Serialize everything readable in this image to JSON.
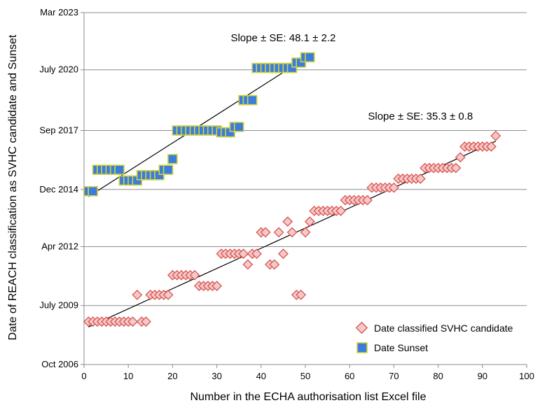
{
  "chart_data": {
    "type": "scatter",
    "xlabel": "Number in the ECHA authorisation list Excel file",
    "ylabel": "Date of REACH classification as SVHC candidate and Sunset",
    "xlim": [
      0,
      100
    ],
    "x_ticks": [
      "0",
      "10",
      "20",
      "30",
      "40",
      "50",
      "60",
      "70",
      "80",
      "90",
      "100"
    ],
    "ylim": [
      "2006-10",
      "2023-03"
    ],
    "y_ticks": [
      {
        "value": "2006-10",
        "label": "Oct 2006"
      },
      {
        "value": "2009-07",
        "label": "July 2009"
      },
      {
        "value": "2012-04",
        "label": "Apr 2012"
      },
      {
        "value": "2014-12",
        "label": "Dec 2014"
      },
      {
        "value": "2017-09",
        "label": "Sep 2017"
      },
      {
        "value": "2020-07",
        "label": "July 2020"
      },
      {
        "value": "2023-03",
        "label": "Mar 2023"
      }
    ],
    "grid": "horizontal",
    "legend_position": "bottom-right",
    "series": [
      {
        "name": "Date classified SVHC candidate",
        "marker": "diamond",
        "color": "#f5c9c9",
        "edge_color": "#d9534f",
        "points": [
          [
            1,
            "2008-10"
          ],
          [
            2,
            "2008-10"
          ],
          [
            3,
            "2008-10"
          ],
          [
            4,
            "2008-10"
          ],
          [
            5,
            "2008-10"
          ],
          [
            6,
            "2008-10"
          ],
          [
            7,
            "2008-10"
          ],
          [
            8,
            "2008-10"
          ],
          [
            9,
            "2008-10"
          ],
          [
            10,
            "2008-10"
          ],
          [
            11,
            "2008-10"
          ],
          [
            12,
            "2010-01"
          ],
          [
            13,
            "2008-10"
          ],
          [
            14,
            "2008-10"
          ],
          [
            15,
            "2010-01"
          ],
          [
            16,
            "2010-01"
          ],
          [
            17,
            "2010-01"
          ],
          [
            18,
            "2010-01"
          ],
          [
            19,
            "2010-01"
          ],
          [
            20,
            "2010-12"
          ],
          [
            21,
            "2010-12"
          ],
          [
            22,
            "2010-12"
          ],
          [
            23,
            "2010-12"
          ],
          [
            24,
            "2010-12"
          ],
          [
            25,
            "2010-12"
          ],
          [
            26,
            "2010-06"
          ],
          [
            27,
            "2010-06"
          ],
          [
            28,
            "2010-06"
          ],
          [
            29,
            "2010-06"
          ],
          [
            30,
            "2010-06"
          ],
          [
            31,
            "2011-12"
          ],
          [
            32,
            "2011-12"
          ],
          [
            33,
            "2011-12"
          ],
          [
            34,
            "2011-12"
          ],
          [
            35,
            "2011-12"
          ],
          [
            36,
            "2011-12"
          ],
          [
            37,
            "2011-06"
          ],
          [
            38,
            "2011-12"
          ],
          [
            39,
            "2011-12"
          ],
          [
            40,
            "2012-12"
          ],
          [
            41,
            "2012-12"
          ],
          [
            42,
            "2011-06"
          ],
          [
            43,
            "2011-06"
          ],
          [
            44,
            "2012-12"
          ],
          [
            45,
            "2011-12"
          ],
          [
            46,
            "2013-06"
          ],
          [
            47,
            "2012-12"
          ],
          [
            48,
            "2010-01"
          ],
          [
            49,
            "2010-01"
          ],
          [
            50,
            "2012-12"
          ],
          [
            51,
            "2013-06"
          ],
          [
            52,
            "2013-12"
          ],
          [
            53,
            "2013-12"
          ],
          [
            54,
            "2013-12"
          ],
          [
            55,
            "2013-12"
          ],
          [
            56,
            "2013-12"
          ],
          [
            57,
            "2013-12"
          ],
          [
            58,
            "2013-12"
          ],
          [
            59,
            "2014-06"
          ],
          [
            60,
            "2014-06"
          ],
          [
            61,
            "2014-06"
          ],
          [
            62,
            "2014-06"
          ],
          [
            63,
            "2014-06"
          ],
          [
            64,
            "2014-06"
          ],
          [
            65,
            "2015-01"
          ],
          [
            66,
            "2015-01"
          ],
          [
            67,
            "2015-01"
          ],
          [
            68,
            "2015-01"
          ],
          [
            69,
            "2015-01"
          ],
          [
            70,
            "2015-01"
          ],
          [
            71,
            "2015-06"
          ],
          [
            72,
            "2015-06"
          ],
          [
            73,
            "2015-06"
          ],
          [
            74,
            "2015-06"
          ],
          [
            75,
            "2015-06"
          ],
          [
            76,
            "2015-06"
          ],
          [
            77,
            "2015-12"
          ],
          [
            78,
            "2015-12"
          ],
          [
            79,
            "2015-12"
          ],
          [
            80,
            "2015-12"
          ],
          [
            81,
            "2015-12"
          ],
          [
            82,
            "2015-12"
          ],
          [
            83,
            "2015-12"
          ],
          [
            84,
            "2015-12"
          ],
          [
            85,
            "2016-06"
          ],
          [
            86,
            "2016-12"
          ],
          [
            87,
            "2016-12"
          ],
          [
            88,
            "2016-12"
          ],
          [
            89,
            "2016-12"
          ],
          [
            90,
            "2016-12"
          ],
          [
            91,
            "2016-12"
          ],
          [
            92,
            "2016-12"
          ],
          [
            93,
            "2017-06"
          ]
        ]
      },
      {
        "name": "Date Sunset",
        "marker": "square",
        "color": "#3b7ddd",
        "edge_color": "#d4d43a",
        "points": [
          [
            1,
            "2014-11"
          ],
          [
            2,
            "2014-11"
          ],
          [
            3,
            "2015-11"
          ],
          [
            4,
            "2015-11"
          ],
          [
            5,
            "2015-11"
          ],
          [
            6,
            "2015-11"
          ],
          [
            7,
            "2015-11"
          ],
          [
            8,
            "2015-11"
          ],
          [
            9,
            "2015-05"
          ],
          [
            10,
            "2015-05"
          ],
          [
            11,
            "2015-05"
          ],
          [
            12,
            "2015-05"
          ],
          [
            13,
            "2015-08"
          ],
          [
            14,
            "2015-08"
          ],
          [
            15,
            "2015-08"
          ],
          [
            16,
            "2015-08"
          ],
          [
            17,
            "2015-08"
          ],
          [
            18,
            "2015-11"
          ],
          [
            19,
            "2015-11"
          ],
          [
            20,
            "2016-05"
          ],
          [
            21,
            "2017-09"
          ],
          [
            22,
            "2017-09"
          ],
          [
            23,
            "2017-09"
          ],
          [
            24,
            "2017-09"
          ],
          [
            25,
            "2017-09"
          ],
          [
            26,
            "2017-09"
          ],
          [
            27,
            "2017-09"
          ],
          [
            28,
            "2017-09"
          ],
          [
            29,
            "2017-09"
          ],
          [
            30,
            "2017-09"
          ],
          [
            31,
            "2017-08"
          ],
          [
            32,
            "2017-08"
          ],
          [
            33,
            "2017-08"
          ],
          [
            34,
            "2017-11"
          ],
          [
            35,
            "2017-11"
          ],
          [
            36,
            "2019-02"
          ],
          [
            37,
            "2019-02"
          ],
          [
            38,
            "2019-02"
          ],
          [
            39,
            "2020-08"
          ],
          [
            40,
            "2020-08"
          ],
          [
            41,
            "2020-08"
          ],
          [
            42,
            "2020-08"
          ],
          [
            43,
            "2020-08"
          ],
          [
            44,
            "2020-08"
          ],
          [
            45,
            "2020-08"
          ],
          [
            46,
            "2020-08"
          ],
          [
            47,
            "2020-08"
          ],
          [
            48,
            "2020-11"
          ],
          [
            49,
            "2020-11"
          ],
          [
            50,
            "2021-02"
          ],
          [
            51,
            "2021-02"
          ]
        ]
      }
    ],
    "trendlines": [
      {
        "series": "Date Sunset",
        "from": [
          1,
          "2014-08"
        ],
        "to": [
          51,
          "2021-03"
        ],
        "color": "#000000"
      },
      {
        "series": "Date classified SVHC candidate",
        "from": [
          1,
          "2008-07"
        ],
        "to": [
          93,
          "2017-03"
        ],
        "color": "#000000"
      }
    ],
    "annotations": [
      {
        "text": "Slope ± SE: 48.1 ± 2.2",
        "x": 45,
        "y": "2021-11"
      },
      {
        "text": "Slope ± SE: 35.3 ± 0.8",
        "x": 76,
        "y": "2018-03"
      }
    ]
  }
}
